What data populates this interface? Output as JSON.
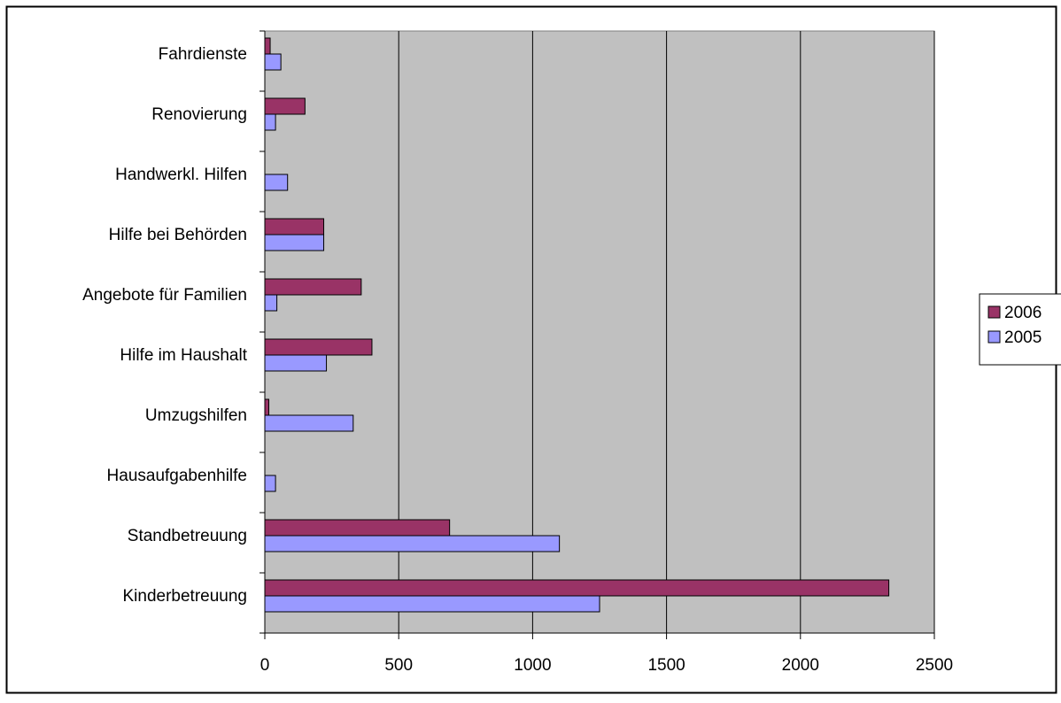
{
  "chart_data": {
    "type": "bar",
    "orientation": "horizontal",
    "title": "",
    "xlabel": "",
    "ylabel": "",
    "categories": [
      "Fahrdienste",
      "Renovierung",
      "Handwerkl. Hilfen",
      "Hilfe bei Behörden",
      "Angebote für Familien",
      "Hilfe im Haushalt",
      "Umzugshilfen",
      "Hausaufgabenhilfe",
      "Standbetreuung",
      "Kinderbetreuung"
    ],
    "series": [
      {
        "name": "2006",
        "color": "#993366",
        "values": [
          20,
          150,
          0,
          220,
          360,
          400,
          15,
          0,
          690,
          2330
        ]
      },
      {
        "name": "2005",
        "color": "#9999ff",
        "values": [
          60,
          40,
          85,
          220,
          45,
          230,
          330,
          40,
          1100,
          1250
        ]
      }
    ],
    "xlim": [
      0,
      2500
    ],
    "xticks": [
      "0",
      "500",
      "1000",
      "1500",
      "2000",
      "2500"
    ],
    "xtick_values": [
      0,
      500,
      1000,
      1500,
      2000,
      2500
    ],
    "grid": true,
    "plot_background": "#c0c0c0",
    "legend": {
      "position": "right",
      "entries": [
        "2006",
        "2005"
      ]
    }
  }
}
